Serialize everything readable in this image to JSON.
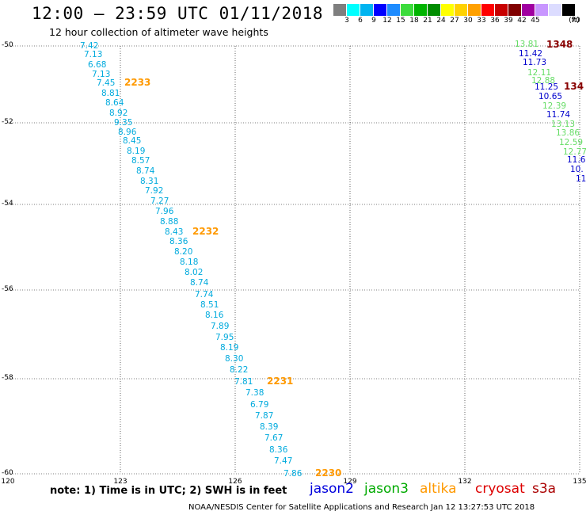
{
  "header": {
    "title": "12:00 — 23:59 UTC 01/11/2018",
    "subtitle": "12 hour collection of altimeter wave heights"
  },
  "colorbar": {
    "unit": "(ft)",
    "colors": [
      "#7f7f7f",
      "#00ffff",
      "#00b4f0",
      "#0000ff",
      "#1e8cff",
      "#3cdc3c",
      "#00b400",
      "#008c00",
      "#ffff00",
      "#ffd200",
      "#ffa000",
      "#ff0000",
      "#c80000",
      "#800000",
      "#a000a0",
      "#c896ff",
      "#dcdcff",
      "#000000"
    ],
    "labels": [
      "3",
      "6",
      "9",
      "12",
      "15",
      "18",
      "21",
      "24",
      "27",
      "30",
      "33",
      "36",
      "39",
      "42",
      "45",
      "70"
    ]
  },
  "map": {
    "lat_labels": [
      "-50",
      "-52",
      "-54",
      "-56",
      "-58",
      "-60"
    ],
    "lon_labels": [
      "120",
      "123",
      "126",
      "129",
      "132",
      "135"
    ],
    "colors": {
      "blue_text": "#00aadd",
      "orange_time": "#ff9900",
      "dark_blue": "#0000cc",
      "green": "#33cc33",
      "light_green": "#66dd66",
      "dark_red": "#880000"
    }
  },
  "track_a": {
    "values": [
      "7.42",
      "7.13",
      "6.68",
      "7.13",
      "7.45",
      "8.81",
      "8.64",
      "8.92",
      "9.35",
      "8.96",
      "8.45",
      "8.19",
      "8.57",
      "8.74",
      "8.31",
      "7.92",
      "7.27",
      "7.96",
      "8.88",
      "8.43",
      "8.36",
      "8.20",
      "8.18",
      "8.02",
      "8.74",
      "7.74",
      "8.51",
      "8.16",
      "7.89",
      "7.95",
      "8.19",
      "8.30",
      "8.22",
      "7.81",
      "7.38",
      "6.79",
      "7.87",
      "8.39",
      "7.67",
      "8.36",
      "7.47",
      "7.86"
    ],
    "times": [
      "2233",
      "2232",
      "2231",
      "2230"
    ]
  },
  "track_b": {
    "values": [
      "13.81",
      "11.42",
      "11.73",
      "12.11",
      "12.88",
      "11.25",
      "10.65",
      "12.39",
      "11.74",
      "13.13",
      "13.86",
      "12.59",
      "12.77",
      "11.6",
      "10.",
      "11"
    ],
    "times": [
      "1348",
      "134"
    ]
  },
  "note": "note: 1) Time is in UTC; 2) SWH is in feet",
  "legend": [
    {
      "label": "jason2",
      "color": "#0000dd"
    },
    {
      "label": "jason3",
      "color": "#00aa00"
    },
    {
      "label": "altika",
      "color": "#ff9900"
    },
    {
      "label": "cryosat",
      "color": "#dd0000"
    },
    {
      "label": "s3a",
      "color": "#aa0000"
    }
  ],
  "footer": "NOAA/NESDIS Center for Satellite Applications and Research   Jan 12 13:27:53 UTC 2018"
}
